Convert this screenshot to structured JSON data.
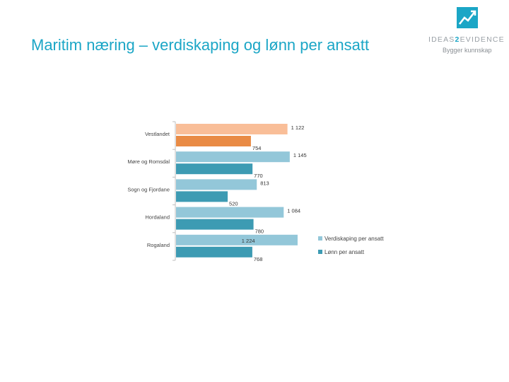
{
  "slide": {
    "title": "Maritim næring – verdiskaping og lønn per ansatt"
  },
  "logo": {
    "name_part1": "IDEAS",
    "name_accent": "2",
    "name_part2": "EVIDENCE",
    "tagline": "Bygger kunnskap",
    "color": "#1ba6c6"
  },
  "chart_data": {
    "type": "bar",
    "orientation": "horizontal",
    "categories": [
      "Vestlandet",
      "Møre og Romsdal",
      "Sogn og Fjordane",
      "Hordaland",
      "Rogaland"
    ],
    "series": [
      {
        "name": "Verdiskaping per ansatt",
        "values": [
          1122,
          1145,
          813,
          1084,
          1224
        ],
        "labels": [
          "1 122",
          "1 145",
          "813",
          "1 084",
          "1 224"
        ],
        "color": "#93c7d9",
        "highlight_color": "#f9be98"
      },
      {
        "name": "Lønn per ansatt",
        "values": [
          754,
          770,
          520,
          780,
          768
        ],
        "labels": [
          "754",
          "770",
          "520",
          "780",
          "768"
        ],
        "color": "#3d9bb3",
        "highlight_color": "#e98b45"
      }
    ],
    "highlight_category": "Vestlandet",
    "xlim": [
      0,
      1300
    ],
    "grid": false,
    "legend_position": "bottom-right"
  }
}
